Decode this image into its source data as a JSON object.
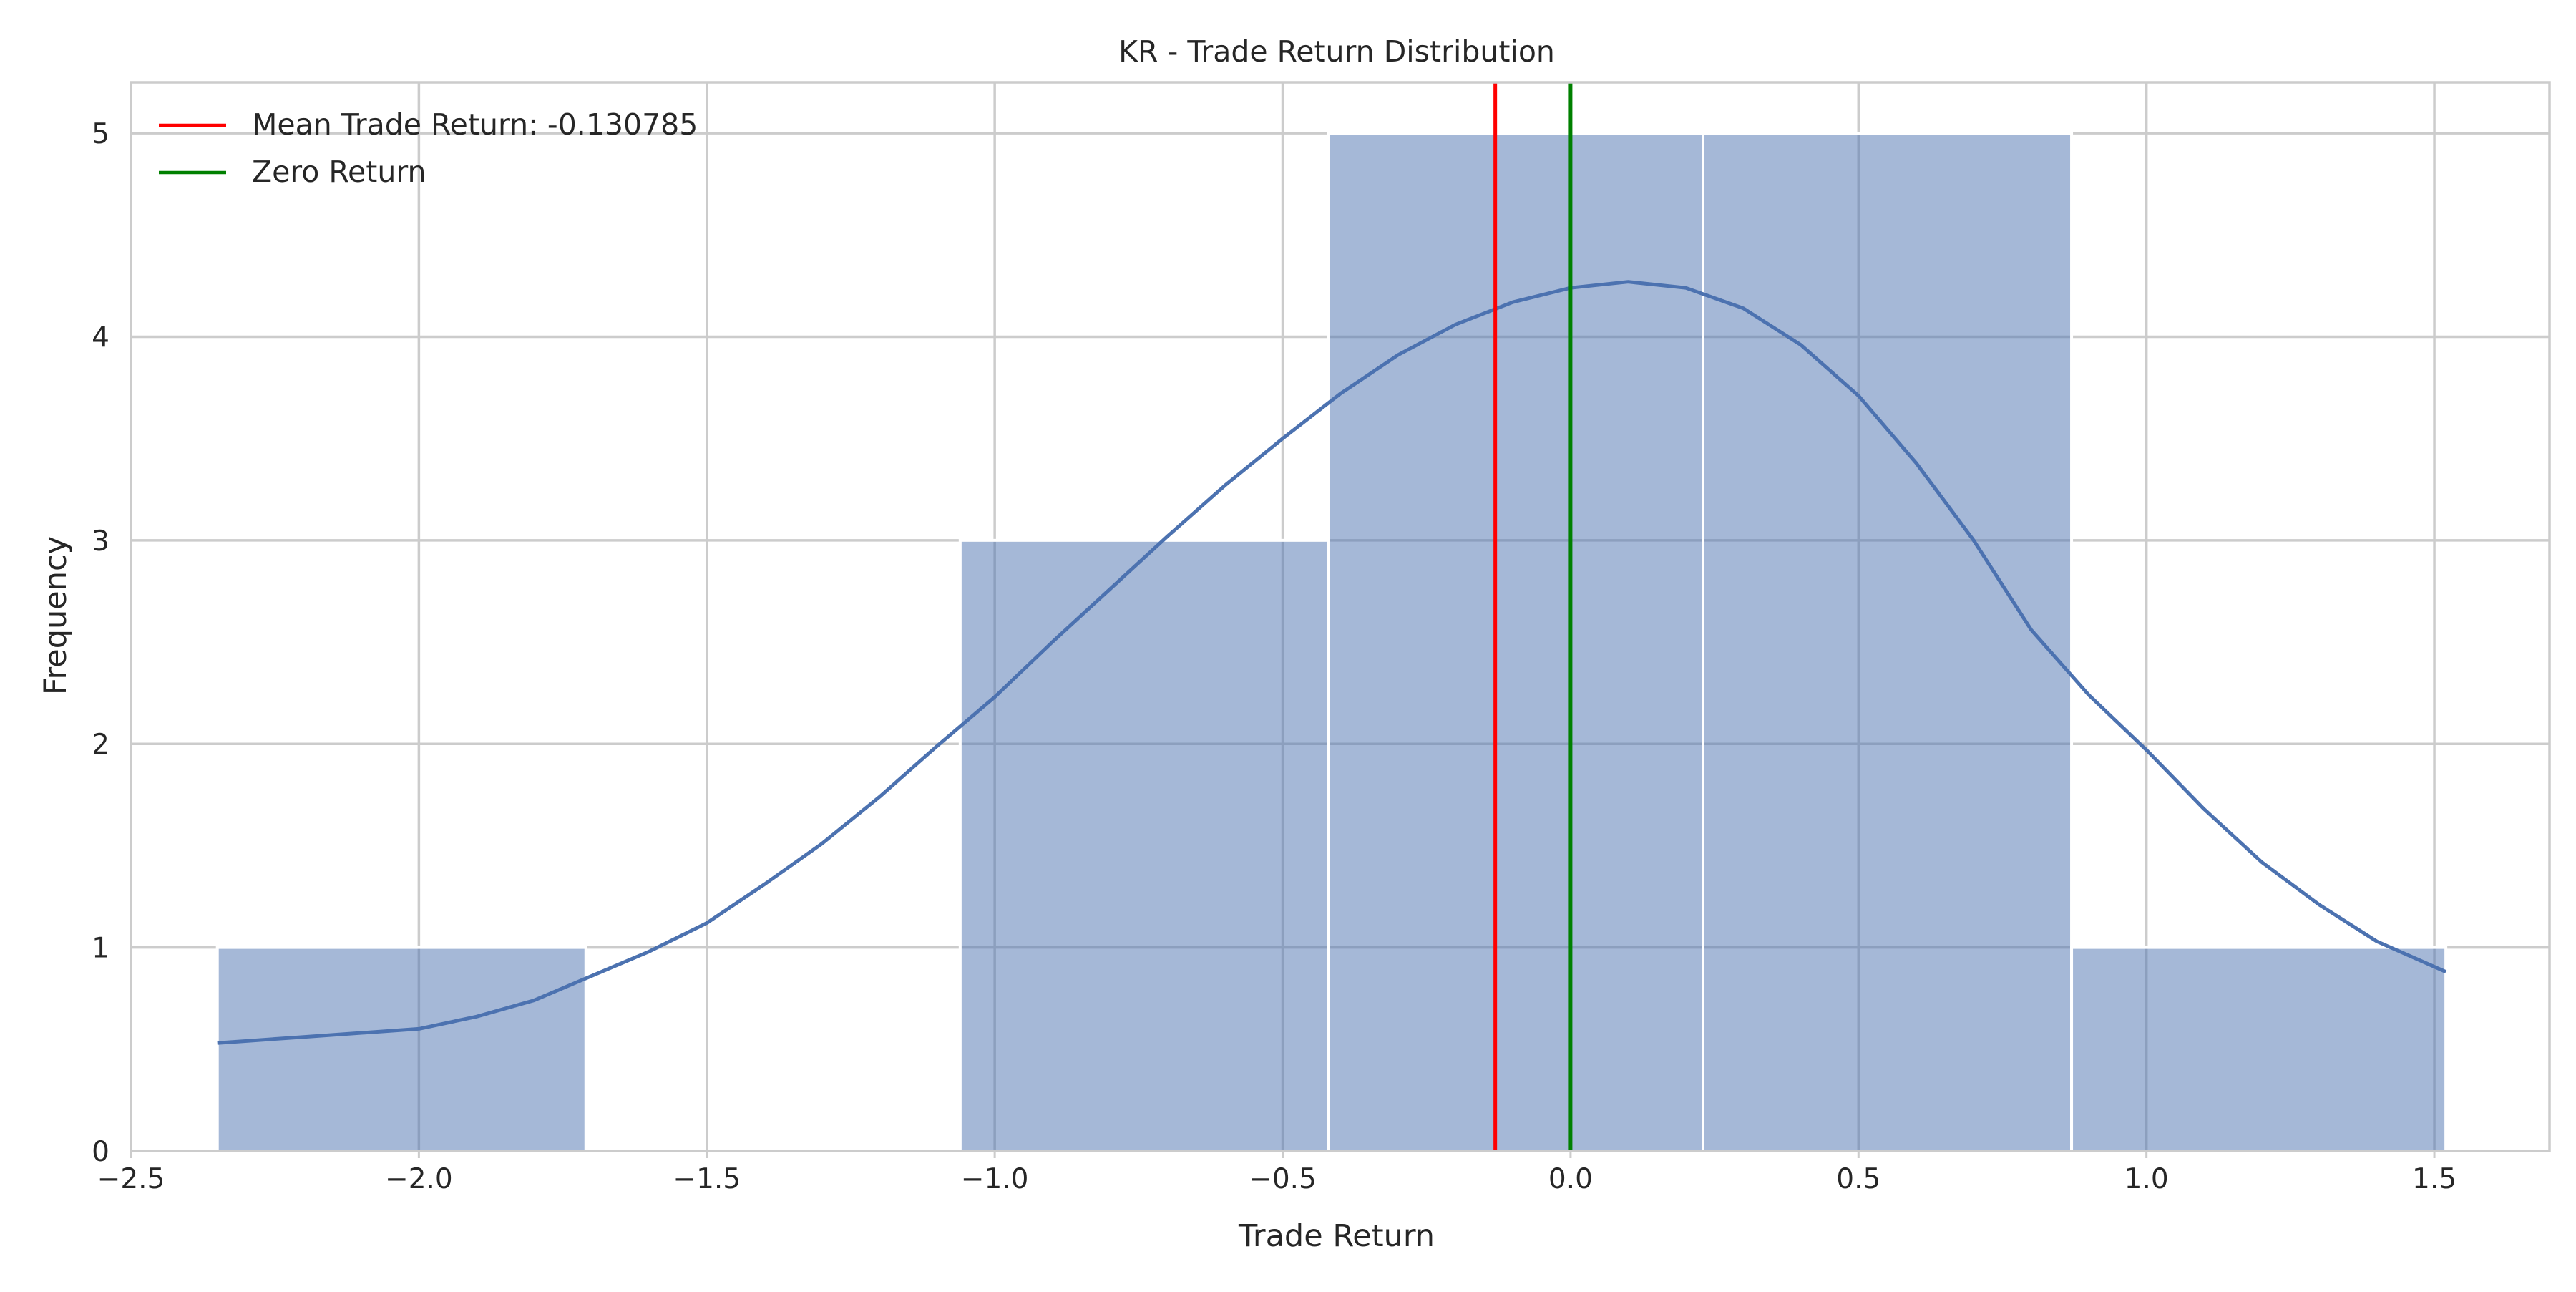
{
  "chart_data": {
    "type": "bar",
    "title": "KR - Trade Return Distribution",
    "xlabel": "Trade Return",
    "ylabel": "Frequency",
    "xlim": [
      -2.5,
      1.7
    ],
    "ylim": [
      0,
      5.25
    ],
    "xticks": [
      -2.5,
      -2.0,
      -1.5,
      -1.0,
      -0.5,
      0.0,
      0.5,
      1.0,
      1.5
    ],
    "xtick_labels": [
      "−2.5",
      "−2.0",
      "−1.5",
      "−1.0",
      "−0.5",
      "0.0",
      "0.5",
      "1.0",
      "1.5"
    ],
    "yticks": [
      0,
      1,
      2,
      3,
      4,
      5
    ],
    "ytick_labels": [
      "0",
      "1",
      "2",
      "3",
      "4",
      "5"
    ],
    "grid": true,
    "legend_position": "top-left",
    "histogram": {
      "bins": [
        {
          "x0": -2.35,
          "x1": -1.71,
          "count": 1
        },
        {
          "x0": -1.71,
          "x1": -1.06,
          "count": 0
        },
        {
          "x0": -1.06,
          "x1": -0.42,
          "count": 3
        },
        {
          "x0": -0.42,
          "x1": 0.23,
          "count": 5
        },
        {
          "x0": 0.23,
          "x1": 0.87,
          "count": 5
        },
        {
          "x0": 0.87,
          "x1": 1.52,
          "count": 1
        }
      ],
      "color": "#4c72b0",
      "opacity": 0.5
    },
    "kde": {
      "color": "#4c72b0",
      "points": [
        [
          -2.35,
          0.53
        ],
        [
          -2.2,
          0.56
        ],
        [
          -2.0,
          0.6
        ],
        [
          -1.9,
          0.66
        ],
        [
          -1.8,
          0.74
        ],
        [
          -1.7,
          0.86
        ],
        [
          -1.6,
          0.98
        ],
        [
          -1.5,
          1.12
        ],
        [
          -1.4,
          1.31
        ],
        [
          -1.3,
          1.51
        ],
        [
          -1.2,
          1.74
        ],
        [
          -1.1,
          1.99
        ],
        [
          -1.0,
          2.23
        ],
        [
          -0.9,
          2.5
        ],
        [
          -0.8,
          2.76
        ],
        [
          -0.7,
          3.02
        ],
        [
          -0.6,
          3.27
        ],
        [
          -0.5,
          3.5
        ],
        [
          -0.4,
          3.72
        ],
        [
          -0.3,
          3.91
        ],
        [
          -0.2,
          4.06
        ],
        [
          -0.1,
          4.17
        ],
        [
          0.0,
          4.24
        ],
        [
          0.1,
          4.27
        ],
        [
          0.2,
          4.24
        ],
        [
          0.3,
          4.14
        ],
        [
          0.4,
          3.96
        ],
        [
          0.5,
          3.71
        ],
        [
          0.6,
          3.38
        ],
        [
          0.7,
          3.0
        ],
        [
          0.8,
          2.56
        ],
        [
          0.9,
          2.24
        ],
        [
          1.0,
          1.97
        ],
        [
          1.1,
          1.68
        ],
        [
          1.2,
          1.42
        ],
        [
          1.3,
          1.21
        ],
        [
          1.4,
          1.03
        ],
        [
          1.52,
          0.88
        ]
      ]
    },
    "vlines": [
      {
        "name": "mean",
        "x": -0.130785,
        "color": "#ff0000"
      },
      {
        "name": "zero",
        "x": 0.0,
        "color": "#008000"
      }
    ],
    "legend": [
      {
        "label": "Mean Trade Return: -0.130785",
        "color": "#ff0000"
      },
      {
        "label": "Zero Return",
        "color": "#008000"
      }
    ]
  }
}
